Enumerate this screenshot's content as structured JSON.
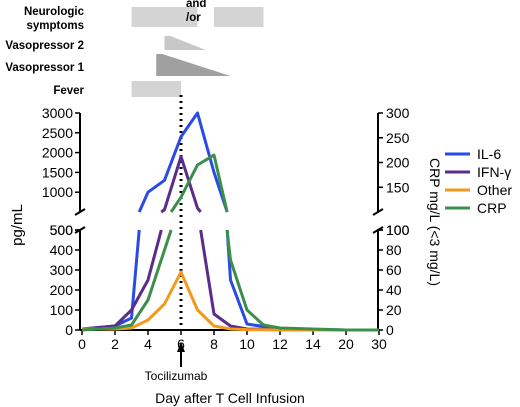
{
  "chart_data": {
    "type": "line",
    "xlabel": "Day after T Cell Infusion",
    "ylabel_left": "pg/mL",
    "ylabel_right": "CRP mg/L (<3 mg/L)",
    "x_ticks": [
      "0",
      "2",
      "4",
      "6",
      "8",
      "10",
      "12",
      "14",
      "20",
      "30"
    ],
    "left_upper_ticks": [
      "500",
      "1000",
      "1500",
      "2000",
      "2500",
      "3000"
    ],
    "left_lower_ticks": [
      "0",
      "100",
      "200",
      "300",
      "400",
      "500"
    ],
    "right_upper_ticks": [
      "100",
      "150",
      "200",
      "250",
      "300"
    ],
    "right_lower_ticks": [
      "0",
      "20",
      "40",
      "60",
      "80",
      "100"
    ],
    "event_label": "Tocilizumab",
    "event_x": 6,
    "symptoms": {
      "rows": [
        {
          "label": "Neurologic\nsymptoms",
          "annotation": "and\n/or",
          "periods": [
            [
              3,
              7
            ],
            [
              8,
              11
            ]
          ],
          "shape": "bar"
        },
        {
          "label": "Vasopressor 2",
          "periods": [
            [
              5,
              7.5
            ]
          ],
          "shape": "taper"
        },
        {
          "label": "Vasopressor 1",
          "periods": [
            [
              4.5,
              9
            ]
          ],
          "shape": "taper"
        },
        {
          "label": "Fever",
          "periods": [
            [
              3,
              6
            ]
          ],
          "shape": "bar"
        }
      ]
    },
    "series": [
      {
        "name": "IL-6",
        "color": "#2a4ae8",
        "axis": "left",
        "points": [
          [
            0,
            5
          ],
          [
            2,
            20
          ],
          [
            3,
            60
          ],
          [
            4,
            1000
          ],
          [
            5,
            1300
          ],
          [
            6,
            2400
          ],
          [
            7,
            3000
          ],
          [
            8,
            1500
          ],
          [
            9,
            250
          ],
          [
            10,
            30
          ],
          [
            12,
            5
          ],
          [
            14,
            3
          ],
          [
            20,
            0
          ],
          [
            30,
            0
          ]
        ]
      },
      {
        "name": "IFN-γ",
        "color": "#5a2d8c",
        "axis": "left",
        "points": [
          [
            0,
            5
          ],
          [
            2,
            20
          ],
          [
            3,
            100
          ],
          [
            4,
            250
          ],
          [
            5,
            560
          ],
          [
            6,
            1900
          ],
          [
            7,
            600
          ],
          [
            8,
            80
          ],
          [
            9,
            20
          ],
          [
            10,
            5
          ],
          [
            12,
            2
          ],
          [
            14,
            0
          ],
          [
            20,
            0
          ],
          [
            30,
            0
          ]
        ]
      },
      {
        "name": "Other",
        "color": "#f39a1e",
        "axis": "left",
        "points": [
          [
            0,
            5
          ],
          [
            2,
            5
          ],
          [
            3,
            10
          ],
          [
            4,
            50
          ],
          [
            5,
            130
          ],
          [
            6,
            290
          ],
          [
            7,
            100
          ],
          [
            8,
            20
          ],
          [
            9,
            5
          ],
          [
            10,
            2
          ],
          [
            12,
            0
          ],
          [
            30,
            0
          ]
        ]
      },
      {
        "name": "CRP",
        "color": "#3c8f4a",
        "axis": "right",
        "points": [
          [
            0,
            0
          ],
          [
            2,
            2
          ],
          [
            3,
            5
          ],
          [
            4,
            30
          ],
          [
            5,
            80
          ],
          [
            6,
            130
          ],
          [
            7,
            195
          ],
          [
            8,
            215
          ],
          [
            9,
            70
          ],
          [
            10,
            20
          ],
          [
            11,
            5
          ],
          [
            12,
            2
          ],
          [
            14,
            1
          ],
          [
            20,
            0
          ],
          [
            30,
            0
          ]
        ]
      }
    ]
  }
}
